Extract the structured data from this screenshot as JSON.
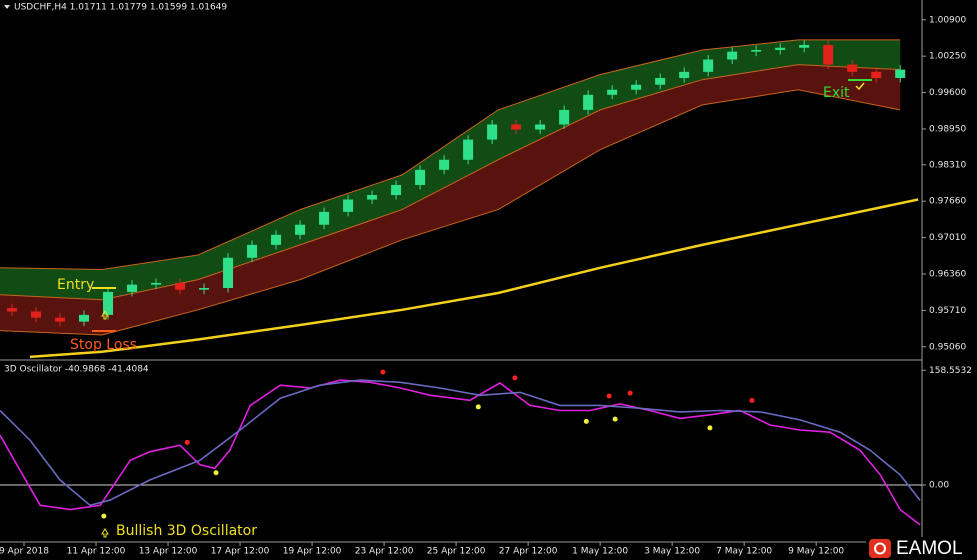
{
  "chart_data": [
    {
      "type": "candlestick",
      "title": "USDCHF,H4  1.01711 1.01779 1.01599 1.01649",
      "xlim": [
        0,
        153.3
      ],
      "ylim": [
        0.9486,
        1.0111
      ],
      "yticks": [
        {
          "value": 1.009,
          "label": "1.00900"
        },
        {
          "value": 1.0025,
          "label": "1.00250"
        },
        {
          "value": 0.996,
          "label": "0.99600"
        },
        {
          "value": 0.9895,
          "label": "0.98950"
        },
        {
          "value": 0.9831,
          "label": "0.98310"
        },
        {
          "value": 0.9766,
          "label": "0.97660"
        },
        {
          "value": 0.9701,
          "label": "0.97010"
        },
        {
          "value": 0.9636,
          "label": "0.96360"
        },
        {
          "value": 0.9571,
          "label": "0.95710"
        },
        {
          "value": 0.9506,
          "label": "0.95060"
        }
      ],
      "up_color": "#2ee08a",
      "down_color": "#e3221b",
      "x": [
        2,
        6,
        10,
        14,
        18,
        22,
        26,
        30,
        34,
        38,
        42,
        46,
        50,
        54,
        58,
        62,
        66,
        70,
        74,
        78,
        82,
        86,
        90,
        94,
        98,
        102,
        106,
        110,
        114,
        118,
        122,
        126,
        130,
        134,
        138,
        142,
        146,
        150
      ],
      "open": [
        0.9575,
        0.9569,
        0.9558,
        0.9551,
        0.9563,
        0.9604,
        0.9617,
        0.962,
        0.9608,
        0.9611,
        0.9665,
        0.9688,
        0.9706,
        0.9724,
        0.9747,
        0.9769,
        0.9777,
        0.9795,
        0.9822,
        0.984,
        0.9876,
        0.9903,
        0.9894,
        0.9903,
        0.9929,
        0.9956,
        0.9965,
        0.9974,
        0.9986,
        0.9997,
        1.0019,
        1.0033,
        1.0036,
        1.004,
        1.0045,
        1.001,
        0.9997,
        0.9986
      ],
      "high": [
        0.9583,
        0.9577,
        0.9566,
        0.9571,
        0.9612,
        0.9625,
        0.9628,
        0.9628,
        0.9619,
        0.9673,
        0.9696,
        0.9714,
        0.9732,
        0.9755,
        0.9777,
        0.9785,
        0.9803,
        0.983,
        0.9848,
        0.9884,
        0.9911,
        0.9911,
        0.9911,
        0.9937,
        0.9964,
        0.9973,
        0.9982,
        0.9994,
        1.0005,
        1.0027,
        1.0041,
        1.0044,
        1.0048,
        1.0053,
        1.0053,
        1.0018,
        1.0005,
        1.0009
      ],
      "low": [
        0.9561,
        0.955,
        0.9543,
        0.9543,
        0.9555,
        0.9596,
        0.9609,
        0.96,
        0.96,
        0.9603,
        0.9657,
        0.968,
        0.9698,
        0.9716,
        0.9739,
        0.9761,
        0.9769,
        0.9787,
        0.9814,
        0.9832,
        0.9868,
        0.9886,
        0.9886,
        0.9895,
        0.9921,
        0.9948,
        0.9957,
        0.9966,
        0.9978,
        0.9989,
        1.0011,
        1.0025,
        1.0028,
        1.0032,
        1.0002,
        0.9989,
        0.9978,
        0.9978
      ],
      "close": [
        0.9569,
        0.9558,
        0.9551,
        0.9563,
        0.9604,
        0.9617,
        0.962,
        0.9608,
        0.9611,
        0.9665,
        0.9688,
        0.9706,
        0.9724,
        0.9747,
        0.9769,
        0.9777,
        0.9795,
        0.9822,
        0.984,
        0.9876,
        0.9903,
        0.9894,
        0.9903,
        0.9929,
        0.9956,
        0.9965,
        0.9974,
        0.9986,
        0.9997,
        1.0019,
        1.0033,
        1.0036,
        1.004,
        1.0045,
        1.001,
        0.9997,
        0.9986,
        1.0001
      ],
      "bands": {
        "x": [
          0,
          17,
          33,
          50,
          67,
          83,
          100,
          117,
          133,
          150
        ],
        "upper": [
          0.9647,
          0.9644,
          0.967,
          0.9751,
          0.9813,
          0.9929,
          0.9992,
          1.0036,
          1.0054,
          1.0054
        ],
        "middle": [
          0.9599,
          0.959,
          0.9626,
          0.9688,
          0.9751,
          0.984,
          0.9929,
          0.9983,
          1.001,
          1.0001
        ],
        "lower": [
          0.9535,
          0.9527,
          0.9572,
          0.9626,
          0.9697,
          0.9751,
          0.9858,
          0.9938,
          0.9965,
          0.9929
        ],
        "upper_fill": "#1f8a25",
        "lower_fill": "#a3221a",
        "line_color": "#c8641e"
      },
      "moving_average": {
        "x": [
          5,
          17,
          33,
          50,
          67,
          83,
          100,
          117,
          133,
          153
        ],
        "values": [
          0.9488,
          0.9497,
          0.9519,
          0.9545,
          0.9572,
          0.9602,
          0.9647,
          0.9688,
          0.9724,
          0.9769
        ],
        "color": "#f2d01c"
      },
      "annotations": {
        "entry": "Entry",
        "stop_loss": "Stop Loss",
        "exit": "Exit"
      }
    },
    {
      "type": "line",
      "title": "3D Oscillator -40.9868 -41.4084",
      "xlim": [
        0,
        153.3
      ],
      "ylim": [
        -76,
        170
      ],
      "yticks": [
        158.5532,
        {
          "value": 0,
          "label": "0.00"
        }
      ],
      "xticks": [
        {
          "value": 4,
          "label": "9 Apr 2018"
        },
        {
          "value": 16,
          "label": "11 Apr 12:00"
        },
        {
          "value": 28,
          "label": "13 Apr 12:00"
        },
        {
          "value": 40,
          "label": "17 Apr 12:00"
        },
        {
          "value": 52,
          "label": "19 Apr 12:00"
        },
        {
          "value": 64,
          "label": "23 Apr 12:00"
        },
        {
          "value": 76,
          "label": "25 Apr 12:00"
        },
        {
          "value": 88,
          "label": "27 Apr 12:00"
        },
        {
          "value": 100,
          "label": "1 May 12:00"
        },
        {
          "value": 112,
          "label": "3 May 12:00"
        },
        {
          "value": 124,
          "label": "7 May 12:00"
        },
        {
          "value": 136,
          "label": "9 May 12:00"
        }
      ],
      "series": [
        {
          "color": "#e020e0",
          "x": [
            0,
            3.3,
            6.7,
            11.7,
            16.7,
            21.7,
            25,
            30,
            33.3,
            35.8,
            38.3,
            41.7,
            46.7,
            51.7,
            56.7,
            61.7,
            66.7,
            71.7,
            78.3,
            83.3,
            88.3,
            93.3,
            98.3,
            103.3,
            108.3,
            113.3,
            118.3,
            123.3,
            128.3,
            133.3,
            138.3,
            143.3,
            146.7,
            150,
            153.3
          ],
          "values": [
            69,
            21,
            -28,
            -34,
            -28,
            34,
            46,
            55,
            28,
            23,
            48,
            110,
            138,
            134,
            145,
            142,
            134,
            124,
            117,
            141,
            110,
            103,
            103,
            112,
            103,
            92,
            97,
            103,
            83,
            76,
            73,
            48,
            14,
            -34,
            -55
          ]
        },
        {
          "color": "#6a6ac0",
          "x": [
            0,
            5,
            10,
            15,
            18.3,
            25,
            33.3,
            40,
            46.7,
            53.3,
            60,
            66.7,
            73.3,
            80,
            86.7,
            93.3,
            100,
            106.7,
            113.3,
            120,
            126.7,
            133.3,
            140,
            145,
            150,
            153.3
          ],
          "values": [
            103,
            62,
            7,
            -28,
            -21,
            7,
            34,
            76,
            120,
            138,
            145,
            142,
            134,
            124,
            128,
            110,
            110,
            106,
            101,
            103,
            101,
            90,
            73,
            48,
            14,
            -21
          ]
        }
      ],
      "signals": {
        "sell": {
          "color": "#ff2222",
          "x": [
            31.2,
            63.8,
            85.8,
            101.5,
            105,
            125.3
          ],
          "values": [
            59,
            156,
            148,
            123,
            127,
            117
          ]
        },
        "buy": {
          "color": "#f0f040",
          "x": [
            17.3,
            36,
            79.7,
            97.7,
            102.5,
            118.3
          ],
          "values": [
            -43,
            17,
            108,
            88,
            91,
            79
          ]
        }
      },
      "annotation": "Bullish 3D Oscillator",
      "watermark": "EAMOL"
    }
  ]
}
